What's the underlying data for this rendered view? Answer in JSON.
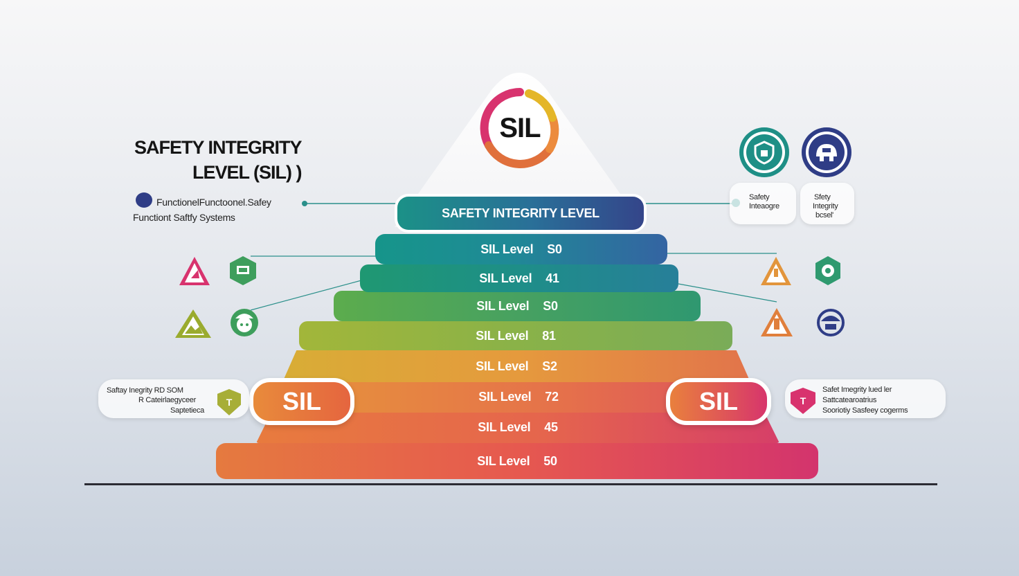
{
  "title": {
    "line1": "SAFETY INTEGRITY",
    "line2": "LEVEL (SIL) )"
  },
  "subtitle": {
    "line1": "FunctionelFunctoonel.Safey",
    "line2": "Functiont Saftfy Systems"
  },
  "logo": {
    "text": "SIL"
  },
  "pyramid": {
    "header": "SAFETY INTEGRITY LEVEL",
    "levels": [
      {
        "label": "SIL Level",
        "value": "S0"
      },
      {
        "label": "SIL Level",
        "value": "41"
      },
      {
        "label": "SIL Level",
        "value": "S0"
      },
      {
        "label": "SIL Level",
        "value": "81"
      },
      {
        "label": "SIL Level",
        "value": "S2"
      },
      {
        "label": "SIL Level",
        "value": "72"
      },
      {
        "label": "SIL Level",
        "value": "45"
      },
      {
        "label": "SIL Level",
        "value": "50"
      }
    ]
  },
  "badges": {
    "left": "SIL",
    "right": "SIL"
  },
  "right_cards": {
    "card1": {
      "line1": "Safety",
      "line2": "Inteaogre"
    },
    "card2": {
      "line1": "Sfety",
      "line2": "Integrity",
      "line3": "bcsel'"
    }
  },
  "left_pill": {
    "line1": "Saftay Inegrity RD SOM",
    "line2": "R Cateirlaegyceer",
    "line3": "Saptetieca",
    "icon_letter": "T"
  },
  "right_pill": {
    "line1": "Safet Imegrity lued ler",
    "line2": "Sattcatearoatrius",
    "line3": "Sooriotiy Sasfeey cogerms",
    "icon_letter": "T"
  },
  "colors": {
    "teal": "#1e8f8f",
    "navy": "#2f3d86",
    "green": "#3e9e5c",
    "orange": "#e07f3c",
    "magenta": "#d8336e",
    "olive": "#8aab2e"
  },
  "icons": [
    "sil-logo-ring",
    "shield-lock-icon",
    "robot-helmet-icon",
    "warning-worker-icon",
    "hazard-tag-icon",
    "mountain-warning-icon",
    "hard-hat-worker-icon",
    "warning-triangle-icon",
    "gear-shield-icon",
    "orange-hazard-icon",
    "navy-helmet-icon"
  ]
}
